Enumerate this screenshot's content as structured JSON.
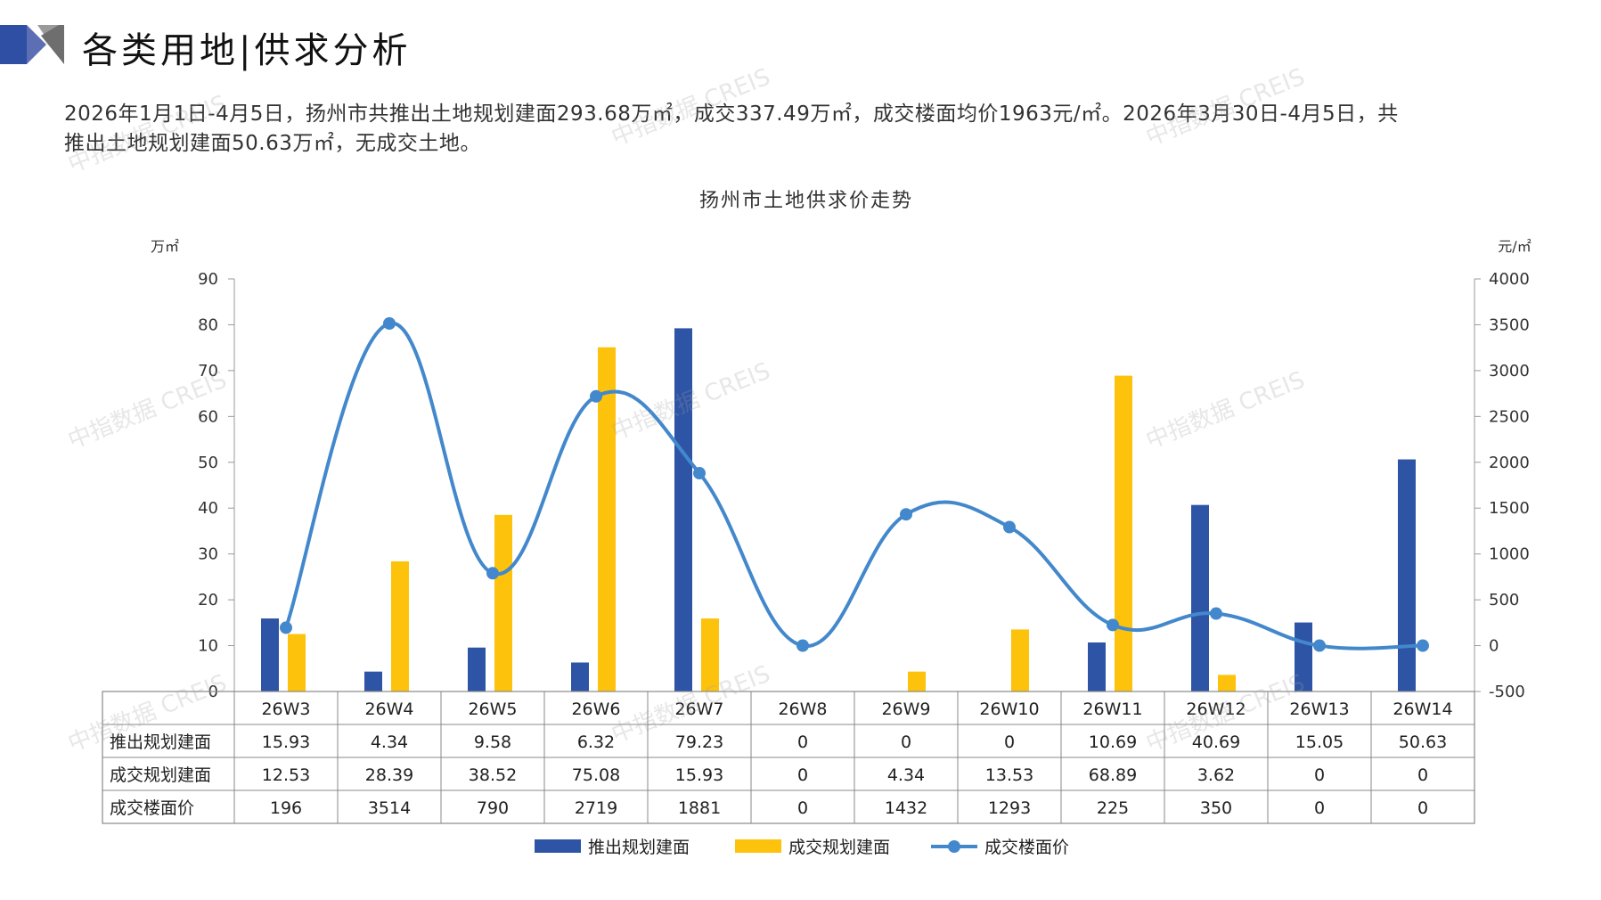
{
  "page": {
    "title": "各类用地|供求分析",
    "summary_line1": "2026年1月1日-4月5日，扬州市共推出土地规划建面293.68万㎡，成交337.49万㎡，成交楼面均价1963元/㎡。2026年3月30日-4月5日，共",
    "summary_line2": "推出土地规划建面50.63万㎡，无成交土地。",
    "watermark": "中指数据 CREIS"
  },
  "colors": {
    "supply": "#2E54A6",
    "transaction": "#FDC20B",
    "price": "#4388CC",
    "logo_dark": "#2E4FA3",
    "logo_grey": "#8A8A8A"
  },
  "chart_data": {
    "type": "bar",
    "title": "扬州市土地供求价走势",
    "categories": [
      "26W3",
      "26W4",
      "26W5",
      "26W6",
      "26W7",
      "26W8",
      "26W9",
      "26W10",
      "26W11",
      "26W12",
      "26W13",
      "26W14"
    ],
    "y_left": {
      "unit": "万㎡",
      "range": [
        0,
        90
      ],
      "ticks": [
        "0",
        "10",
        "20",
        "30",
        "40",
        "50",
        "60",
        "70",
        "80",
        "90"
      ]
    },
    "y_right": {
      "unit": "元/㎡",
      "range": [
        -500,
        4000
      ],
      "ticks": [
        "-500",
        "0",
        "500",
        "1000",
        "1500",
        "2000",
        "2500",
        "3000",
        "3500",
        "4000"
      ]
    },
    "series": [
      {
        "name": "推出规划建面",
        "kind": "bar",
        "axis": "left",
        "values": [
          15.93,
          4.34,
          9.58,
          6.32,
          79.23,
          0,
          0,
          0,
          10.69,
          40.69,
          15.05,
          50.63
        ],
        "labels": [
          "15.93",
          "4.34",
          "9.58",
          "6.32",
          "79.23",
          "0",
          "0",
          "0",
          "10.69",
          "40.69",
          "15.05",
          "50.63"
        ]
      },
      {
        "name": "成交规划建面",
        "kind": "bar",
        "axis": "left",
        "values": [
          12.53,
          28.39,
          38.52,
          75.08,
          15.93,
          0,
          4.34,
          13.53,
          68.89,
          3.62,
          0,
          0
        ],
        "labels": [
          "12.53",
          "28.39",
          "38.52",
          "75.08",
          "15.93",
          "0",
          "4.34",
          "13.53",
          "68.89",
          "3.62",
          "0",
          "0"
        ]
      },
      {
        "name": "成交楼面价",
        "kind": "line",
        "axis": "right",
        "values": [
          196,
          3514,
          790,
          2719,
          1881,
          0,
          1432,
          1293,
          225,
          350,
          0,
          0
        ],
        "labels": [
          "196",
          "3514",
          "790",
          "2719",
          "1881",
          "0",
          "1432",
          "1293",
          "225",
          "350",
          "0",
          "0"
        ]
      }
    ],
    "legend": "bottom-center",
    "grid": false,
    "data_table": true
  }
}
